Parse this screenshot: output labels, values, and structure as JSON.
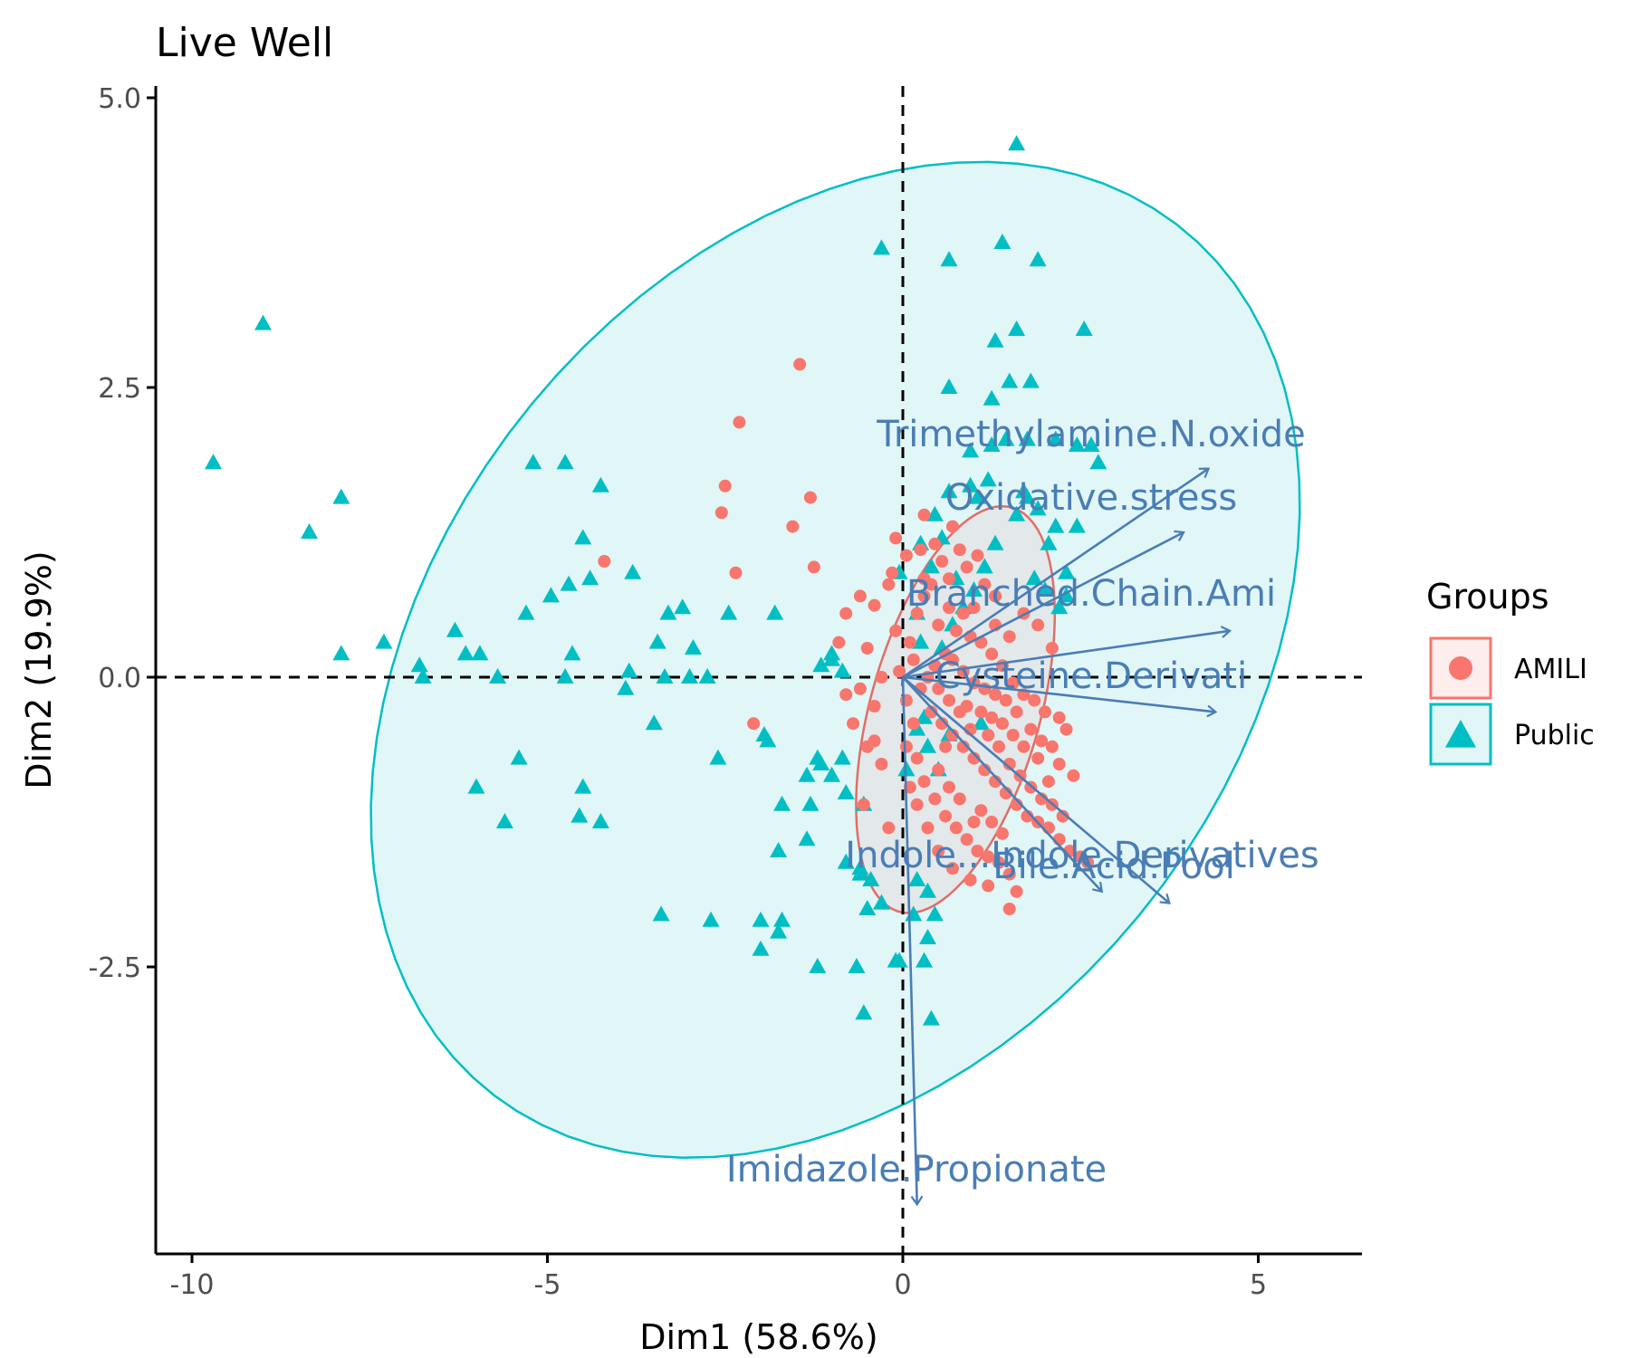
{
  "chart_data": {
    "type": "scatter",
    "title": "Live Well",
    "xlabel": "Dim1 (58.6%)",
    "ylabel": "Dim2 (19.9%)",
    "xlim": [
      -10.5,
      6.5
    ],
    "ylim": [
      -5.0,
      5.0
    ],
    "x_ticks": [
      {
        "value": -10,
        "label": "-10"
      },
      {
        "value": -5,
        "label": "-5"
      },
      {
        "value": 0,
        "label": "0"
      },
      {
        "value": 5,
        "label": "5"
      }
    ],
    "y_ticks": [
      {
        "value": 5.0,
        "label": "5.0"
      },
      {
        "value": 2.5,
        "label": "2.5"
      },
      {
        "value": 0.0,
        "label": "0.0"
      },
      {
        "value": -2.5,
        "label": "-2.5"
      }
    ],
    "reference_lines": {
      "x": 0,
      "y": 0,
      "style": "dashed"
    },
    "legend": {
      "title": "Groups",
      "position": "right",
      "entries": [
        {
          "label": "AMILI",
          "shape": "circle",
          "color": "#F8766D"
        },
        {
          "label": "Public",
          "shape": "triangle",
          "color": "#00BFC4"
        }
      ]
    },
    "series": [
      {
        "name": "AMILI",
        "shape": "circle",
        "color": "#F8766D",
        "ellipse": {
          "cx": 0.74,
          "cy": -0.28,
          "a": 1.95,
          "b": 1.11,
          "angle_deg": 58,
          "fill": "#E3E8EA",
          "stroke": "#E06E66"
        },
        "points": [
          [
            -1.45,
            2.7
          ],
          [
            -2.3,
            2.2
          ],
          [
            -2.5,
            1.65
          ],
          [
            -2.55,
            1.42
          ],
          [
            -4.2,
            1.0
          ],
          [
            -2.35,
            0.9
          ],
          [
            -1.3,
            1.55
          ],
          [
            -1.55,
            1.3
          ],
          [
            -1.25,
            0.95
          ],
          [
            -2.1,
            -0.4
          ],
          [
            -0.6,
            0.7
          ],
          [
            -0.8,
            0.55
          ],
          [
            -0.4,
            0.62
          ],
          [
            -0.2,
            0.8
          ],
          [
            -0.9,
            0.3
          ],
          [
            -0.5,
            0.25
          ],
          [
            -0.3,
            0.0
          ],
          [
            -0.6,
            -0.1
          ],
          [
            -0.8,
            -0.15
          ],
          [
            -0.4,
            -0.25
          ],
          [
            -0.7,
            -0.4
          ],
          [
            -0.5,
            -0.6
          ],
          [
            -0.3,
            -0.75
          ],
          [
            -0.55,
            -1.1
          ],
          [
            -0.2,
            -1.3
          ],
          [
            -0.4,
            -0.55
          ],
          [
            -0.1,
            0.4
          ],
          [
            -0.15,
            0.9
          ],
          [
            0.1,
            0.3
          ],
          [
            0.05,
            -0.2
          ],
          [
            0.15,
            -0.4
          ],
          [
            0.2,
            0.55
          ],
          [
            0.3,
            0.7
          ],
          [
            0.4,
            0.8
          ],
          [
            0.3,
            1.4
          ],
          [
            0.45,
            1.15
          ],
          [
            0.55,
            1.0
          ],
          [
            0.65,
            0.85
          ],
          [
            0.7,
            1.3
          ],
          [
            0.8,
            1.1
          ],
          [
            0.9,
            0.95
          ],
          [
            1.05,
            1.05
          ],
          [
            1.15,
            0.8
          ],
          [
            1.3,
            0.7
          ],
          [
            1.0,
            0.6
          ],
          [
            0.85,
            0.55
          ],
          [
            0.75,
            0.4
          ],
          [
            0.95,
            0.35
          ],
          [
            1.1,
            0.3
          ],
          [
            1.25,
            0.2
          ],
          [
            1.4,
            0.1
          ],
          [
            1.55,
            -0.05
          ],
          [
            1.7,
            -0.15
          ],
          [
            1.85,
            -0.2
          ],
          [
            2.0,
            -0.3
          ],
          [
            2.2,
            -0.35
          ],
          [
            2.3,
            -0.45
          ],
          [
            2.1,
            -0.6
          ],
          [
            1.95,
            -0.55
          ],
          [
            1.8,
            -0.45
          ],
          [
            1.6,
            -0.3
          ],
          [
            1.45,
            -0.2
          ],
          [
            1.3,
            -0.15
          ],
          [
            1.15,
            -0.1
          ],
          [
            1.0,
            -0.05
          ],
          [
            0.85,
            0.05
          ],
          [
            0.7,
            0.15
          ],
          [
            0.6,
            0.2
          ],
          [
            0.45,
            0.1
          ],
          [
            0.35,
            0.0
          ],
          [
            0.25,
            -0.1
          ],
          [
            0.4,
            -0.3
          ],
          [
            0.55,
            -0.4
          ],
          [
            0.7,
            -0.5
          ],
          [
            0.85,
            -0.6
          ],
          [
            1.0,
            -0.7
          ],
          [
            1.15,
            -0.8
          ],
          [
            1.3,
            -0.9
          ],
          [
            1.45,
            -1.0
          ],
          [
            1.6,
            -1.1
          ],
          [
            1.75,
            -1.2
          ],
          [
            1.9,
            -1.25
          ],
          [
            2.05,
            -1.3
          ],
          [
            2.2,
            -1.4
          ],
          [
            2.35,
            -1.5
          ],
          [
            2.5,
            -1.55
          ],
          [
            2.6,
            -1.6
          ],
          [
            0.3,
            -0.9
          ],
          [
            0.45,
            -1.05
          ],
          [
            0.6,
            -1.2
          ],
          [
            0.75,
            -1.3
          ],
          [
            0.9,
            -1.4
          ],
          [
            1.05,
            -1.5
          ],
          [
            1.2,
            -1.55
          ],
          [
            1.35,
            -1.6
          ],
          [
            1.5,
            -1.7
          ],
          [
            1.6,
            -1.85
          ],
          [
            1.5,
            -2.0
          ],
          [
            1.2,
            -1.8
          ],
          [
            0.95,
            -1.75
          ],
          [
            0.7,
            -1.65
          ],
          [
            0.5,
            -1.5
          ],
          [
            0.35,
            -1.3
          ],
          [
            0.2,
            -1.1
          ],
          [
            0.1,
            -0.95
          ],
          [
            0.05,
            -0.6
          ],
          [
            0.2,
            -0.7
          ],
          [
            0.5,
            -0.8
          ],
          [
            0.65,
            -0.95
          ],
          [
            0.8,
            -1.05
          ],
          [
            1.1,
            -1.15
          ],
          [
            1.25,
            -1.25
          ],
          [
            1.4,
            -1.35
          ],
          [
            1.0,
            -1.25
          ],
          [
            0.6,
            -0.6
          ],
          [
            0.9,
            -0.25
          ],
          [
            1.2,
            -0.5
          ],
          [
            1.35,
            -0.6
          ],
          [
            1.5,
            -0.75
          ],
          [
            1.65,
            -0.85
          ],
          [
            1.8,
            -0.95
          ],
          [
            1.95,
            -1.05
          ],
          [
            2.1,
            -1.1
          ],
          [
            2.25,
            -1.2
          ],
          [
            1.7,
            -0.6
          ],
          [
            1.55,
            -0.5
          ],
          [
            1.4,
            -0.4
          ],
          [
            1.25,
            -0.35
          ],
          [
            1.1,
            -0.3
          ],
          [
            0.95,
            -0.45
          ],
          [
            0.8,
            -0.3
          ],
          [
            0.65,
            -0.2
          ],
          [
            0.5,
            -0.1
          ],
          [
            1.9,
            -0.7
          ],
          [
            2.4,
            -0.85
          ],
          [
            2.2,
            -0.75
          ],
          [
            2.05,
            -0.9
          ],
          [
            1.3,
            0.45
          ],
          [
            1.5,
            0.35
          ],
          [
            1.7,
            0.55
          ],
          [
            1.9,
            0.45
          ],
          [
            2.1,
            0.25
          ],
          [
            0.15,
            0.15
          ],
          [
            -0.05,
            0.05
          ],
          [
            0.5,
            0.45
          ],
          [
            0.65,
            0.6
          ],
          [
            0.3,
            0.85
          ],
          [
            0.05,
            1.05
          ],
          [
            -0.1,
            1.2
          ],
          [
            0.25,
            1.1
          ]
        ]
      },
      {
        "name": "Public",
        "shape": "triangle",
        "color": "#00BFC4",
        "ellipse": {
          "cx": -0.95,
          "cy": 0.15,
          "a": 6.75,
          "b": 3.95,
          "angle_deg": 18,
          "fill": "#E1F6F7",
          "stroke": "#00BFC4"
        },
        "points": [
          [
            1.6,
            4.6
          ],
          [
            1.4,
            3.75
          ],
          [
            1.9,
            3.6
          ],
          [
            0.65,
            3.6
          ],
          [
            -0.3,
            3.7
          ],
          [
            1.6,
            3.0
          ],
          [
            2.55,
            3.0
          ],
          [
            1.3,
            2.9
          ],
          [
            0.65,
            2.5
          ],
          [
            1.25,
            2.4
          ],
          [
            1.5,
            2.55
          ],
          [
            1.8,
            2.55
          ],
          [
            -9.0,
            3.05
          ],
          [
            -9.7,
            1.85
          ],
          [
            -7.9,
            1.55
          ],
          [
            -8.35,
            1.25
          ],
          [
            -5.2,
            1.85
          ],
          [
            -4.75,
            1.85
          ],
          [
            -4.25,
            1.65
          ],
          [
            -4.5,
            1.2
          ],
          [
            -4.7,
            0.8
          ],
          [
            -4.4,
            0.85
          ],
          [
            -3.8,
            0.9
          ],
          [
            -4.95,
            0.7
          ],
          [
            -5.3,
            0.55
          ],
          [
            -3.3,
            0.55
          ],
          [
            -3.1,
            0.6
          ],
          [
            -2.45,
            0.55
          ],
          [
            -1.8,
            0.55
          ],
          [
            -6.3,
            0.4
          ],
          [
            -7.3,
            0.3
          ],
          [
            -6.15,
            0.2
          ],
          [
            -5.95,
            0.2
          ],
          [
            -7.9,
            0.2
          ],
          [
            -6.8,
            0.1
          ],
          [
            -4.65,
            0.2
          ],
          [
            -3.45,
            0.3
          ],
          [
            -2.95,
            0.25
          ],
          [
            -6.75,
            0.0
          ],
          [
            -5.7,
            0.0
          ],
          [
            -4.75,
            0.0
          ],
          [
            -3.85,
            0.05
          ],
          [
            -3.35,
            0.0
          ],
          [
            -3.0,
            0.0
          ],
          [
            -2.75,
            0.0
          ],
          [
            -3.9,
            -0.1
          ],
          [
            -3.5,
            -0.4
          ],
          [
            -1.0,
            0.15
          ],
          [
            -1.15,
            0.1
          ],
          [
            -0.85,
            0.05
          ],
          [
            -1.0,
            0.2
          ],
          [
            -6.0,
            -0.95
          ],
          [
            -5.4,
            -0.7
          ],
          [
            -4.5,
            -0.95
          ],
          [
            -4.55,
            -1.2
          ],
          [
            -4.25,
            -1.25
          ],
          [
            -5.6,
            -1.25
          ],
          [
            -2.6,
            -0.7
          ],
          [
            -1.95,
            -0.5
          ],
          [
            -1.9,
            -0.55
          ],
          [
            -1.2,
            -0.7
          ],
          [
            -0.85,
            -0.7
          ],
          [
            -1.0,
            -0.85
          ],
          [
            -1.15,
            -0.75
          ],
          [
            -1.35,
            -0.85
          ],
          [
            -0.8,
            -1.0
          ],
          [
            -1.7,
            -1.1
          ],
          [
            -1.3,
            -1.1
          ],
          [
            -0.55,
            -1.1
          ],
          [
            -1.75,
            -1.5
          ],
          [
            -1.35,
            -1.4
          ],
          [
            -0.8,
            -1.6
          ],
          [
            -0.6,
            -1.65
          ],
          [
            -0.45,
            -1.75
          ],
          [
            -0.6,
            -1.7
          ],
          [
            -3.4,
            -2.05
          ],
          [
            -2.7,
            -2.1
          ],
          [
            -2.0,
            -2.1
          ],
          [
            -1.7,
            -2.1
          ],
          [
            -1.75,
            -2.2
          ],
          [
            -2.0,
            -2.35
          ],
          [
            -0.5,
            -2.0
          ],
          [
            -0.3,
            -1.95
          ],
          [
            -1.2,
            -2.5
          ],
          [
            -0.65,
            -2.5
          ],
          [
            -0.1,
            -2.45
          ],
          [
            -0.05,
            -2.45
          ],
          [
            0.3,
            -2.45
          ],
          [
            0.35,
            -2.25
          ],
          [
            -0.55,
            -2.9
          ],
          [
            0.4,
            -2.95
          ],
          [
            0.15,
            -2.05
          ],
          [
            0.35,
            -1.85
          ],
          [
            0.2,
            -1.75
          ],
          [
            0.45,
            -2.05
          ],
          [
            0.35,
            -0.6
          ],
          [
            0.2,
            -0.45
          ],
          [
            0.65,
            -0.5
          ],
          [
            0.5,
            -0.8
          ],
          [
            0.05,
            -0.8
          ],
          [
            -0.05,
            0.9
          ],
          [
            0.2,
            0.55
          ],
          [
            0.25,
            0.3
          ],
          [
            0.55,
            0.25
          ],
          [
            0.7,
            0.45
          ],
          [
            0.85,
            0.6
          ],
          [
            1.0,
            0.75
          ],
          [
            1.15,
            0.95
          ],
          [
            1.3,
            1.15
          ],
          [
            1.6,
            1.4
          ],
          [
            1.75,
            1.55
          ],
          [
            2.15,
            1.3
          ],
          [
            1.9,
            1.45
          ],
          [
            0.65,
            1.6
          ],
          [
            0.95,
            1.65
          ],
          [
            1.2,
            1.7
          ],
          [
            0.95,
            1.95
          ],
          [
            1.25,
            2.0
          ],
          [
            1.45,
            2.05
          ],
          [
            1.75,
            2.05
          ],
          [
            2.15,
            2.05
          ],
          [
            2.45,
            2.0
          ],
          [
            2.65,
            2.0
          ],
          [
            2.75,
            1.85
          ],
          [
            2.45,
            1.3
          ],
          [
            2.05,
            1.15
          ],
          [
            1.85,
            0.85
          ],
          [
            2.3,
            0.9
          ],
          [
            2.2,
            0.6
          ],
          [
            1.7,
            1.6
          ],
          [
            0.45,
            1.4
          ],
          [
            0.25,
            1.15
          ],
          [
            0.55,
            1.2
          ],
          [
            1.05,
            1.55
          ],
          [
            0.75,
            0.85
          ],
          [
            0.4,
            0.95
          ],
          [
            2.0,
            0.75
          ],
          [
            2.3,
            0.7
          ],
          [
            0.3,
            -0.35
          ],
          [
            1.1,
            -0.4
          ]
        ]
      }
    ],
    "variables": [
      {
        "label": "Trimethylamine.N.oxide",
        "x": 4.3,
        "y": 1.8
      },
      {
        "label": "Oxidative.stress",
        "x": 3.95,
        "y": 1.25
      },
      {
        "label": "Branched.Chain.Ami",
        "x": 4.6,
        "y": 0.4
      },
      {
        "label": "Cysteine.Derivati",
        "x": 4.4,
        "y": -0.3
      },
      {
        "label": "Indole...Indole.Derivatives",
        "x": 3.75,
        "y": -1.95
      },
      {
        "label": "Bile.Acid.Pool",
        "x": 2.8,
        "y": -1.85
      },
      {
        "label": "Imidazole.Propionate",
        "x": 0.2,
        "y": -4.55
      }
    ]
  }
}
